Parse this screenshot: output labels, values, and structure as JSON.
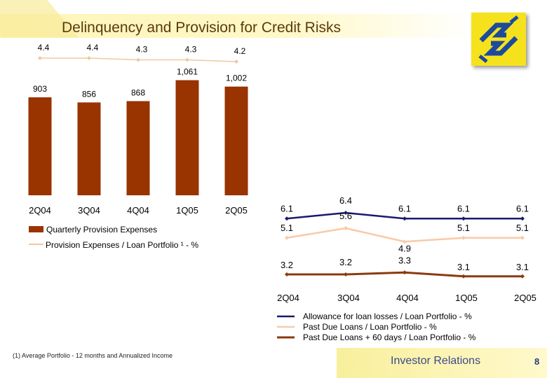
{
  "title": "Delinquency and Provision for Credit Risks",
  "colors": {
    "bar": "#993300",
    "provision_line": "#f0c8a0",
    "allowance": "#1a1a6e",
    "past_due": "#f9c9a8",
    "past_due_60": "#8b3a0f",
    "logo_yellow": "#f6e21c",
    "logo_blue": "#1c4a9c"
  },
  "logo": "banco-do-brasil-logo",
  "chart_data": [
    {
      "type": "bar",
      "categories": [
        "2Q04",
        "3Q04",
        "4Q04",
        "1Q05",
        "2Q05"
      ],
      "series": [
        {
          "name": "Quarterly Provision Expenses",
          "type": "bar",
          "values": [
            903,
            856,
            868,
            1061,
            1002
          ],
          "labels": [
            "903",
            "856",
            "868",
            "1,061",
            "1,002"
          ]
        },
        {
          "name": "Provision Expenses / Loan Portfolio ¹ - %",
          "type": "line",
          "values": [
            4.4,
            4.4,
            4.3,
            4.3,
            4.2
          ],
          "labels": [
            "4.4",
            "4.4",
            "4.3",
            "4.3",
            "4.2"
          ]
        }
      ],
      "legend": "bottom"
    },
    {
      "type": "line",
      "categories": [
        "2Q04",
        "3Q04",
        "4Q04",
        "1Q05",
        "2Q05"
      ],
      "series": [
        {
          "name": "Allowance for loan losses / Loan Portfolio - %",
          "values": [
            6.1,
            6.4,
            6.1,
            6.1,
            6.1
          ],
          "labels": [
            "6.1",
            "6.4",
            "6.1",
            "6.1",
            "6.1"
          ]
        },
        {
          "name": "Past Due Loans / Loan Portfolio - %",
          "values": [
            5.1,
            5.6,
            4.9,
            5.1,
            5.1
          ],
          "labels": [
            "5.1",
            "5.6",
            "4.9",
            "5.1",
            "5.1"
          ]
        },
        {
          "name": "Past Due Loans + 60 days / Loan Portfolio - %",
          "values": [
            3.2,
            3.2,
            3.3,
            3.1,
            3.1
          ],
          "labels": [
            "3.2",
            "3.2",
            "3.3",
            "3.1",
            "3.1"
          ]
        }
      ],
      "legend": "bottom"
    }
  ],
  "footnote": "(1) Average Portfolio - 12 months and Annualized Income",
  "footer": {
    "label": "Investor Relations",
    "page": "8"
  }
}
